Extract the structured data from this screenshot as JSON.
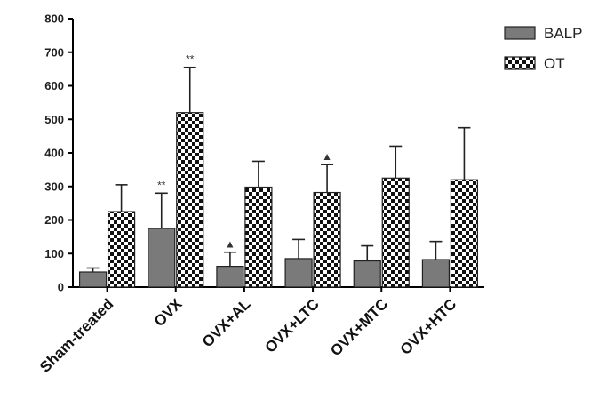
{
  "chart_data": {
    "type": "bar",
    "categories": [
      "Sham-treated",
      "OVX",
      "OVX+AL",
      "OVX+LTC",
      "OVX+MTC",
      "OVX+HTC"
    ],
    "series": [
      {
        "name": "BALP",
        "values": [
          45,
          175,
          62,
          85,
          78,
          82
        ],
        "error": [
          12,
          105,
          42,
          57,
          45,
          54
        ],
        "annotations": [
          "",
          "**",
          "▲",
          "",
          "",
          ""
        ],
        "color": "#7a7a7a"
      },
      {
        "name": "OT",
        "values": [
          225,
          520,
          298,
          282,
          325,
          320
        ],
        "error": [
          80,
          135,
          77,
          83,
          95,
          155
        ],
        "annotations": [
          "",
          "**",
          "",
          "▲",
          "",
          ""
        ],
        "color": "#1a1a1a"
      }
    ],
    "yticks": [
      "0",
      "100",
      "200",
      "300",
      "400",
      "500",
      "600",
      "700",
      "800"
    ],
    "ylim": [
      0,
      800
    ],
    "title": "",
    "xlabel": "",
    "ylabel": "",
    "legend_position": "top-right",
    "grid": false
  }
}
